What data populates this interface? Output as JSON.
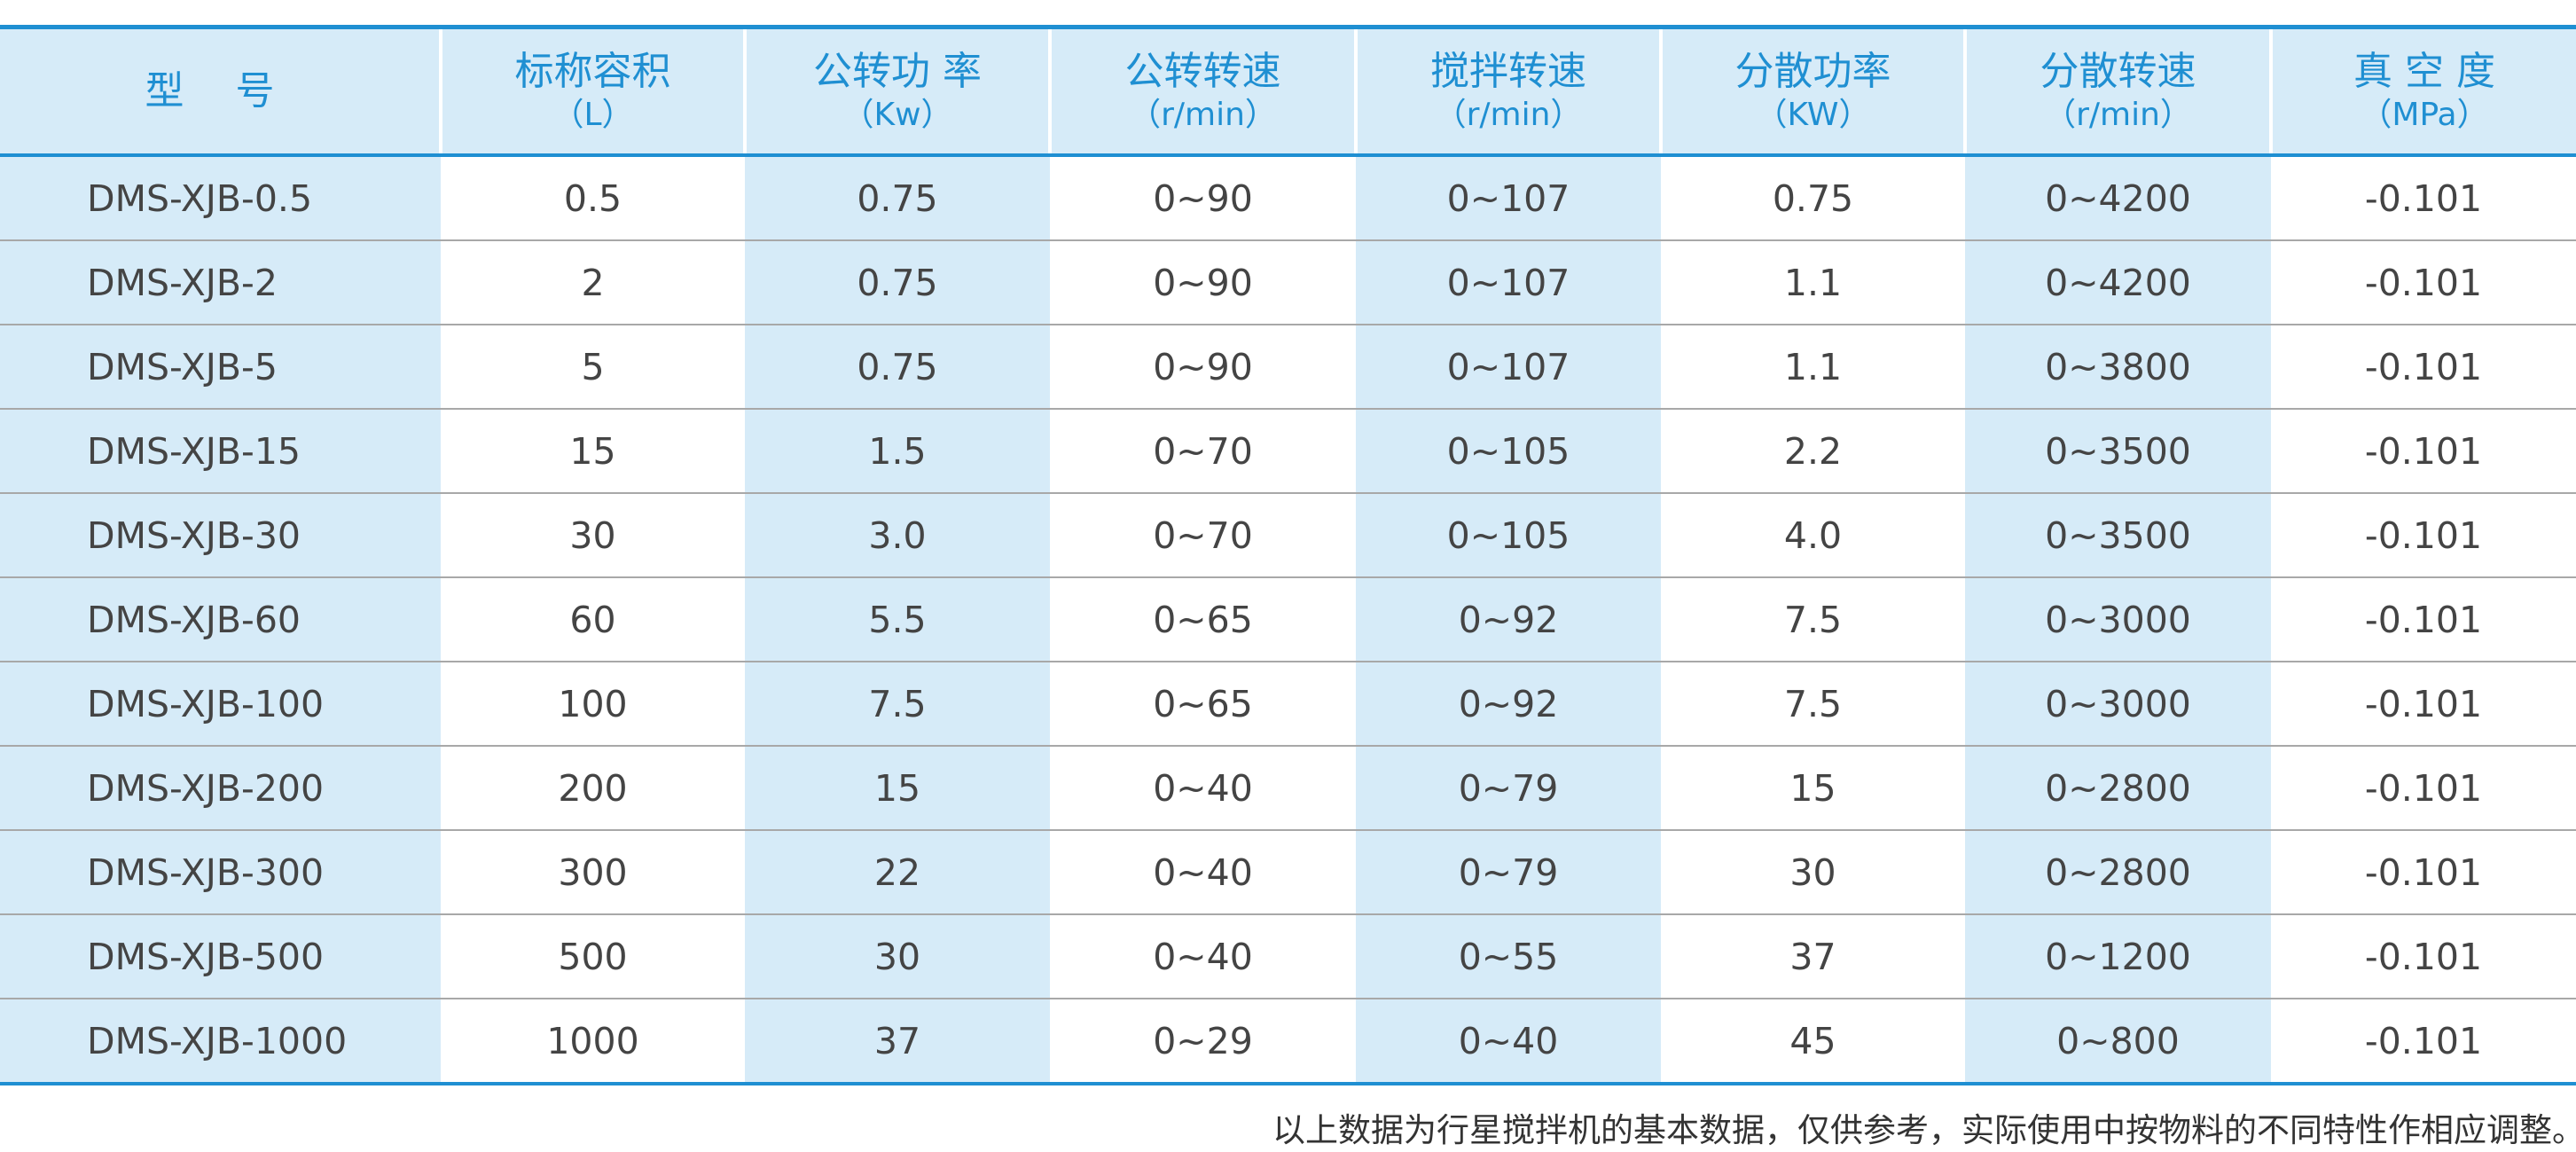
{
  "table": {
    "columns": [
      {
        "title": "型 号"
      },
      {
        "title": "标称容积",
        "unit": "（L）"
      },
      {
        "title": "公转功 率",
        "unit": "（Kw）"
      },
      {
        "title": "公转转速",
        "unit": "（r/min）"
      },
      {
        "title": "搅拌转速",
        "unit": "（r/min）"
      },
      {
        "title": "分散功率",
        "unit": "（KW）"
      },
      {
        "title": "分散转速",
        "unit": "（r/min）"
      },
      {
        "title": "真 空 度",
        "unit": "（MPa）"
      }
    ],
    "rows": [
      [
        "DMS-XJB-0.5",
        "0.5",
        "0.75",
        "0~90",
        "0~107",
        "0.75",
        "0~4200",
        "-0.101"
      ],
      [
        "DMS-XJB-2",
        "2",
        "0.75",
        "0~90",
        "0~107",
        "1.1",
        "0~4200",
        "-0.101"
      ],
      [
        "DMS-XJB-5",
        "5",
        "0.75",
        "0~90",
        "0~107",
        "1.1",
        "0~3800",
        "-0.101"
      ],
      [
        "DMS-XJB-15",
        "15",
        "1.5",
        "0~70",
        "0~105",
        "2.2",
        "0~3500",
        "-0.101"
      ],
      [
        "DMS-XJB-30",
        "30",
        "3.0",
        "0~70",
        "0~105",
        "4.0",
        "0~3500",
        "-0.101"
      ],
      [
        "DMS-XJB-60",
        "60",
        "5.5",
        "0~65",
        "0~92",
        "7.5",
        "0~3000",
        "-0.101"
      ],
      [
        "DMS-XJB-100",
        "100",
        "7.5",
        "0~65",
        "0~92",
        "7.5",
        "0~3000",
        "-0.101"
      ],
      [
        "DMS-XJB-200",
        "200",
        "15",
        "0~40",
        "0~79",
        "15",
        "0~2800",
        "-0.101"
      ],
      [
        "DMS-XJB-300",
        "300",
        "22",
        "0~40",
        "0~79",
        "30",
        "0~2800",
        "-0.101"
      ],
      [
        "DMS-XJB-500",
        "500",
        "30",
        "0~40",
        "0~55",
        "37",
        "0~1200",
        "-0.101"
      ],
      [
        "DMS-XJB-1000",
        "1000",
        "37",
        "0~29",
        "0~40",
        "45",
        "0~800",
        "-0.101"
      ]
    ]
  },
  "footnote": "以上数据为行星搅拌机的基本数据，仅供参考，实际使用中按物料的不同特性作相应调整。"
}
